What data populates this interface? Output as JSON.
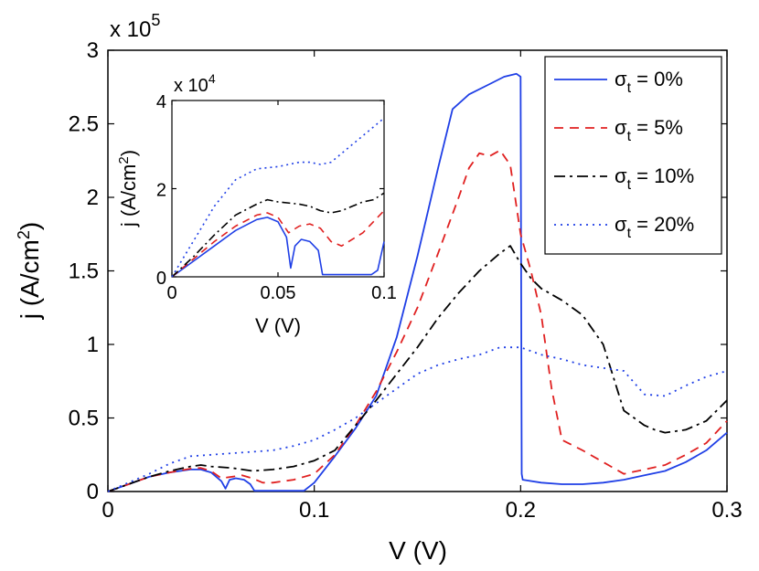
{
  "chart_data": [
    {
      "type": "line",
      "id": "main",
      "xlabel": "V (V)",
      "ylabel": "j (A/cm²)",
      "ylabel_base": "j (A/cm",
      "ylabel_sup": "2",
      "ylabel_end": ")",
      "y_multiplier_base": "x 10",
      "y_multiplier_exp": "5",
      "xlim": [
        0,
        0.3
      ],
      "ylim": [
        0,
        3
      ],
      "x_ticks": [
        0,
        0.1,
        0.2,
        0.3
      ],
      "x_tick_labels": [
        "0",
        "0.1",
        "0.2",
        "0.3"
      ],
      "y_ticks": [
        0,
        0.5,
        1,
        1.5,
        2,
        2.5,
        3
      ],
      "y_tick_labels": [
        "0",
        "0.5",
        "1",
        "1.5",
        "2",
        "2.5",
        "3"
      ],
      "grid": false,
      "legend_position": "top-right",
      "series": [
        {
          "legend": "σt = 0%",
          "legend_sigma": "σ",
          "legend_sub": "t",
          "legend_rest": " = 0%",
          "color": "#1f3fe6",
          "dash": "solid",
          "points": [
            [
              0,
              0
            ],
            [
              0.01,
              0.05
            ],
            [
              0.02,
              0.1
            ],
            [
              0.03,
              0.13
            ],
            [
              0.04,
              0.15
            ],
            [
              0.045,
              0.15
            ],
            [
              0.05,
              0.13
            ],
            [
              0.055,
              0.07
            ],
            [
              0.057,
              0.02
            ],
            [
              0.059,
              0.08
            ],
            [
              0.062,
              0.09
            ],
            [
              0.066,
              0.08
            ],
            [
              0.069,
              0.05
            ],
            [
              0.071,
              0.005
            ],
            [
              0.08,
              0.005
            ],
            [
              0.095,
              0.005
            ],
            [
              0.1,
              0.06
            ],
            [
              0.11,
              0.24
            ],
            [
              0.12,
              0.43
            ],
            [
              0.13,
              0.65
            ],
            [
              0.14,
              1.05
            ],
            [
              0.15,
              1.6
            ],
            [
              0.16,
              2.2
            ],
            [
              0.167,
              2.6
            ],
            [
              0.175,
              2.7
            ],
            [
              0.185,
              2.77
            ],
            [
              0.192,
              2.82
            ],
            [
              0.198,
              2.84
            ],
            [
              0.2,
              2.82
            ],
            [
              0.2005,
              0.12
            ],
            [
              0.201,
              0.08
            ],
            [
              0.21,
              0.06
            ],
            [
              0.22,
              0.05
            ],
            [
              0.23,
              0.05
            ],
            [
              0.24,
              0.06
            ],
            [
              0.25,
              0.08
            ],
            [
              0.26,
              0.11
            ],
            [
              0.27,
              0.14
            ],
            [
              0.28,
              0.2
            ],
            [
              0.29,
              0.28
            ],
            [
              0.3,
              0.4
            ]
          ]
        },
        {
          "legend": "σt = 5%",
          "legend_sigma": "σ",
          "legend_sub": "t",
          "legend_rest": " = 5%",
          "color": "#e02020",
          "dash": "10,7",
          "points": [
            [
              0,
              0
            ],
            [
              0.01,
              0.05
            ],
            [
              0.02,
              0.1
            ],
            [
              0.03,
              0.13
            ],
            [
              0.04,
              0.155
            ],
            [
              0.045,
              0.16
            ],
            [
              0.05,
              0.14
            ],
            [
              0.055,
              0.09
            ],
            [
              0.06,
              0.1
            ],
            [
              0.065,
              0.11
            ],
            [
              0.07,
              0.09
            ],
            [
              0.075,
              0.06
            ],
            [
              0.08,
              0.06
            ],
            [
              0.09,
              0.08
            ],
            [
              0.1,
              0.12
            ],
            [
              0.11,
              0.25
            ],
            [
              0.12,
              0.45
            ],
            [
              0.13,
              0.68
            ],
            [
              0.14,
              0.95
            ],
            [
              0.15,
              1.25
            ],
            [
              0.16,
              1.62
            ],
            [
              0.17,
              2.0
            ],
            [
              0.175,
              2.2
            ],
            [
              0.18,
              2.3
            ],
            [
              0.185,
              2.28
            ],
            [
              0.19,
              2.32
            ],
            [
              0.195,
              2.22
            ],
            [
              0.2,
              1.75
            ],
            [
              0.205,
              1.5
            ],
            [
              0.21,
              1.2
            ],
            [
              0.215,
              0.7
            ],
            [
              0.22,
              0.35
            ],
            [
              0.23,
              0.28
            ],
            [
              0.24,
              0.2
            ],
            [
              0.25,
              0.12
            ],
            [
              0.26,
              0.15
            ],
            [
              0.27,
              0.18
            ],
            [
              0.28,
              0.25
            ],
            [
              0.29,
              0.33
            ],
            [
              0.3,
              0.48
            ]
          ]
        },
        {
          "legend": "σt = 10%",
          "legend_sigma": "σ",
          "legend_sub": "t",
          "legend_rest": " = 10%",
          "color": "#000000",
          "dash": "12,5,3,5",
          "points": [
            [
              0,
              0
            ],
            [
              0.01,
              0.05
            ],
            [
              0.02,
              0.1
            ],
            [
              0.03,
              0.14
            ],
            [
              0.04,
              0.17
            ],
            [
              0.045,
              0.18
            ],
            [
              0.05,
              0.17
            ],
            [
              0.06,
              0.16
            ],
            [
              0.07,
              0.14
            ],
            [
              0.08,
              0.15
            ],
            [
              0.09,
              0.17
            ],
            [
              0.1,
              0.21
            ],
            [
              0.11,
              0.28
            ],
            [
              0.12,
              0.45
            ],
            [
              0.13,
              0.62
            ],
            [
              0.14,
              0.8
            ],
            [
              0.15,
              0.98
            ],
            [
              0.16,
              1.18
            ],
            [
              0.17,
              1.35
            ],
            [
              0.18,
              1.5
            ],
            [
              0.19,
              1.62
            ],
            [
              0.195,
              1.67
            ],
            [
              0.2,
              1.55
            ],
            [
              0.205,
              1.45
            ],
            [
              0.21,
              1.38
            ],
            [
              0.22,
              1.3
            ],
            [
              0.23,
              1.2
            ],
            [
              0.24,
              1.0
            ],
            [
              0.25,
              0.55
            ],
            [
              0.255,
              0.5
            ],
            [
              0.26,
              0.45
            ],
            [
              0.265,
              0.42
            ],
            [
              0.27,
              0.4
            ],
            [
              0.28,
              0.42
            ],
            [
              0.29,
              0.48
            ],
            [
              0.3,
              0.62
            ]
          ]
        },
        {
          "legend": "σt = 20%",
          "legend_sigma": "σ",
          "legend_sub": "t",
          "legend_rest": " = 20%",
          "color": "#1f3fe6",
          "dash": "2,5",
          "points": [
            [
              0,
              0
            ],
            [
              0.01,
              0.06
            ],
            [
              0.02,
              0.12
            ],
            [
              0.03,
              0.19
            ],
            [
              0.04,
              0.24
            ],
            [
              0.05,
              0.25
            ],
            [
              0.06,
              0.26
            ],
            [
              0.07,
              0.27
            ],
            [
              0.08,
              0.28
            ],
            [
              0.09,
              0.31
            ],
            [
              0.1,
              0.35
            ],
            [
              0.11,
              0.42
            ],
            [
              0.12,
              0.5
            ],
            [
              0.13,
              0.6
            ],
            [
              0.14,
              0.7
            ],
            [
              0.15,
              0.8
            ],
            [
              0.16,
              0.86
            ],
            [
              0.17,
              0.9
            ],
            [
              0.18,
              0.93
            ],
            [
              0.19,
              0.98
            ],
            [
              0.2,
              0.98
            ],
            [
              0.21,
              0.93
            ],
            [
              0.22,
              0.9
            ],
            [
              0.23,
              0.86
            ],
            [
              0.24,
              0.84
            ],
            [
              0.25,
              0.82
            ],
            [
              0.26,
              0.66
            ],
            [
              0.27,
              0.65
            ],
            [
              0.28,
              0.72
            ],
            [
              0.29,
              0.78
            ],
            [
              0.3,
              0.82
            ]
          ]
        }
      ]
    },
    {
      "type": "line",
      "id": "inset",
      "xlabel": "V (V)",
      "ylabel_base": "j (A/cm",
      "ylabel_sup": "2",
      "ylabel_end": ")",
      "y_multiplier_base": "x 10",
      "y_multiplier_exp": "4",
      "xlim": [
        0,
        0.1
      ],
      "ylim": [
        0,
        4
      ],
      "x_ticks": [
        0,
        0.05,
        0.1
      ],
      "x_tick_labels": [
        "0",
        "0.05",
        "0.1"
      ],
      "y_ticks": [
        0,
        2,
        4
      ],
      "y_tick_labels": [
        "0",
        "2",
        "4"
      ],
      "grid": false,
      "series": [
        {
          "color": "#1f3fe6",
          "dash": "solid",
          "points": [
            [
              0,
              0
            ],
            [
              0.01,
              0.35
            ],
            [
              0.02,
              0.7
            ],
            [
              0.03,
              1.05
            ],
            [
              0.04,
              1.3
            ],
            [
              0.045,
              1.35
            ],
            [
              0.05,
              1.25
            ],
            [
              0.054,
              0.9
            ],
            [
              0.056,
              0.2
            ],
            [
              0.058,
              0.7
            ],
            [
              0.061,
              0.85
            ],
            [
              0.065,
              0.8
            ],
            [
              0.069,
              0.6
            ],
            [
              0.071,
              0.05
            ],
            [
              0.08,
              0.05
            ],
            [
              0.094,
              0.05
            ],
            [
              0.097,
              0.15
            ],
            [
              0.1,
              0.8
            ]
          ]
        },
        {
          "color": "#e02020",
          "dash": "8,6",
          "points": [
            [
              0,
              0
            ],
            [
              0.01,
              0.4
            ],
            [
              0.02,
              0.8
            ],
            [
              0.03,
              1.15
            ],
            [
              0.04,
              1.4
            ],
            [
              0.045,
              1.45
            ],
            [
              0.05,
              1.35
            ],
            [
              0.055,
              1.0
            ],
            [
              0.06,
              1.15
            ],
            [
              0.065,
              1.2
            ],
            [
              0.07,
              1.1
            ],
            [
              0.075,
              0.8
            ],
            [
              0.08,
              0.7
            ],
            [
              0.09,
              1.0
            ],
            [
              0.1,
              1.5
            ]
          ]
        },
        {
          "color": "#000000",
          "dash": "9,4,2,4",
          "points": [
            [
              0,
              0
            ],
            [
              0.01,
              0.45
            ],
            [
              0.02,
              0.95
            ],
            [
              0.03,
              1.4
            ],
            [
              0.04,
              1.65
            ],
            [
              0.045,
              1.75
            ],
            [
              0.05,
              1.7
            ],
            [
              0.06,
              1.65
            ],
            [
              0.065,
              1.6
            ],
            [
              0.07,
              1.5
            ],
            [
              0.075,
              1.45
            ],
            [
              0.08,
              1.5
            ],
            [
              0.085,
              1.6
            ],
            [
              0.09,
              1.7
            ],
            [
              0.095,
              1.75
            ],
            [
              0.1,
              1.9
            ]
          ]
        },
        {
          "color": "#1f3fe6",
          "dash": "2,4",
          "points": [
            [
              0,
              0
            ],
            [
              0.01,
              0.8
            ],
            [
              0.02,
              1.6
            ],
            [
              0.03,
              2.2
            ],
            [
              0.04,
              2.45
            ],
            [
              0.05,
              2.5
            ],
            [
              0.06,
              2.6
            ],
            [
              0.065,
              2.6
            ],
            [
              0.07,
              2.55
            ],
            [
              0.075,
              2.6
            ],
            [
              0.08,
              2.8
            ],
            [
              0.09,
              3.2
            ],
            [
              0.1,
              3.6
            ]
          ]
        }
      ]
    }
  ]
}
